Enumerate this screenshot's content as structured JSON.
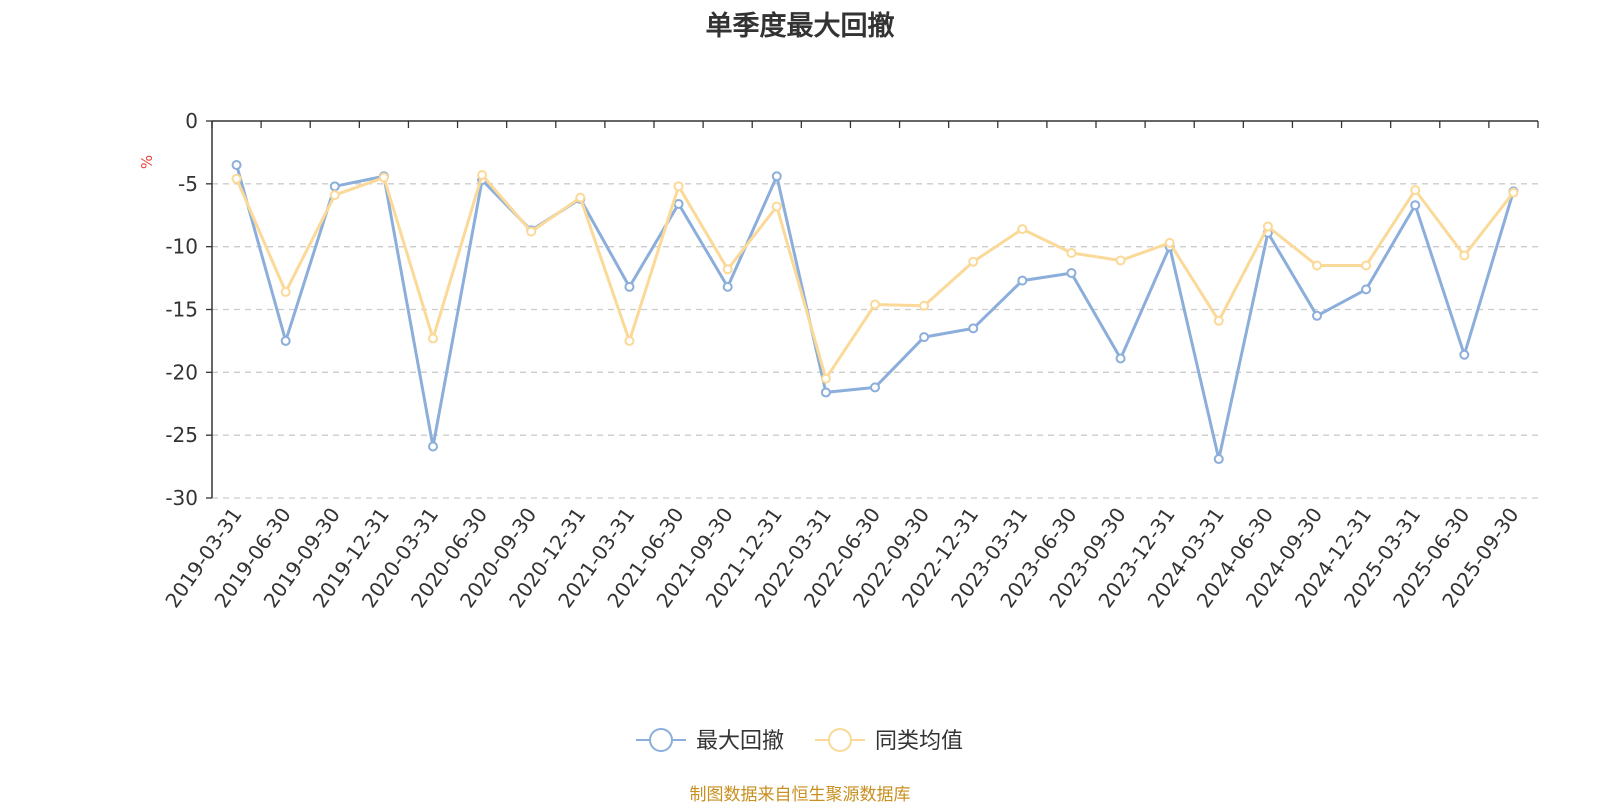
{
  "chart_data": {
    "type": "line",
    "title": "单季度最大回撤",
    "ylabel": "%",
    "ylim": [
      -30,
      0
    ],
    "yticks": [
      0,
      -5,
      -10,
      -15,
      -20,
      -25,
      -30
    ],
    "grid": true,
    "legend_position": "bottom",
    "categories": [
      "2019-03-31",
      "2019-06-30",
      "2019-09-30",
      "2019-12-31",
      "2020-03-31",
      "2020-06-30",
      "2020-09-30",
      "2020-12-31",
      "2021-03-31",
      "2021-06-30",
      "2021-09-30",
      "2021-12-31",
      "2022-03-31",
      "2022-06-30",
      "2022-09-30",
      "2022-12-31",
      "2023-03-31",
      "2023-06-30",
      "2023-09-30",
      "2023-12-31",
      "2024-03-31",
      "2024-06-30",
      "2024-09-30",
      "2024-12-31",
      "2025-03-31",
      "2025-06-30",
      "2025-09-30"
    ],
    "series": [
      {
        "name": "最大回撤",
        "color": "#8caedb",
        "values": [
          -3.5,
          -17.5,
          -5.2,
          -4.4,
          -25.9,
          -4.7,
          -8.7,
          -6.2,
          -13.2,
          -6.6,
          -13.2,
          -4.4,
          -21.6,
          -21.2,
          -17.2,
          -16.5,
          -12.7,
          -12.1,
          -18.9,
          -10.0,
          -26.9,
          -8.9,
          -15.5,
          -13.4,
          -6.7,
          -18.6,
          -5.6
        ]
      },
      {
        "name": "同类均值",
        "color": "#fbd998",
        "values": [
          -4.6,
          -13.6,
          -5.9,
          -4.5,
          -17.3,
          -4.3,
          -8.8,
          -6.1,
          -17.5,
          -5.2,
          -11.8,
          -6.8,
          -20.5,
          -14.6,
          -14.7,
          -11.2,
          -8.6,
          -10.5,
          -11.1,
          -9.7,
          -15.9,
          -8.4,
          -11.5,
          -11.5,
          -5.5,
          -10.7,
          -5.7
        ]
      }
    ]
  },
  "source_note": "制图数据来自恒生聚源数据库"
}
